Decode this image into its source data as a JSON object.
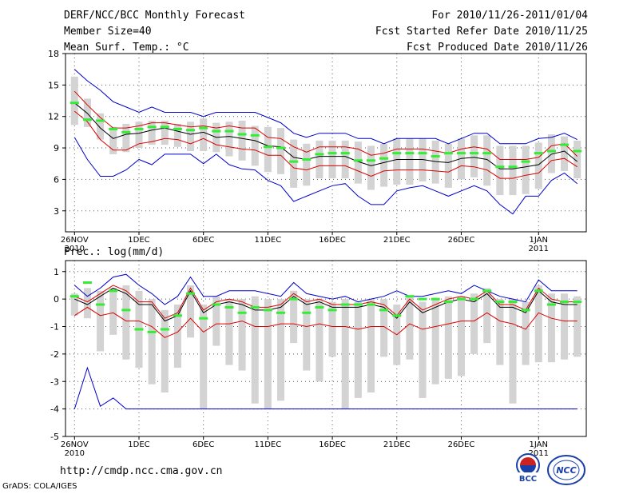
{
  "header": {
    "title": "DERF/NCC/BCC Monthly Forecast",
    "member_size": "Member Size=40",
    "variable": "Mean Surf. Temp.: °C",
    "period": "For 2010/11/26-2011/01/04",
    "fcst_started": "Fcst Started Refer Date 2010/11/25",
    "fcst_produced": "Fcst Produced Date 2010/11/26"
  },
  "colors": {
    "box": "#d3d3d3",
    "median": "#33ee33",
    "mean": "#000000",
    "inner": "#dd0000",
    "outer": "#0000cc",
    "grid": "#555555"
  },
  "footer": {
    "url": "http://cmdp.ncc.cma.gov.cn",
    "grads": "GrADS: COLA/IGES",
    "logo_left": "BCC",
    "logo_right": "NCC"
  },
  "chart_data": [
    {
      "type": "line",
      "title": "Mean Surf. Temp.: °C",
      "ylim": [
        1,
        18
      ],
      "yticks": [
        3,
        6,
        9,
        12,
        15,
        18
      ],
      "x": [
        1,
        2,
        3,
        4,
        5,
        6,
        7,
        8,
        9,
        10,
        11,
        12,
        13,
        14,
        15,
        16,
        17,
        18,
        19,
        20,
        21,
        22,
        23,
        24,
        25,
        26,
        27,
        28,
        29,
        30,
        31,
        32,
        33,
        34,
        35,
        36,
        37,
        38,
        39,
        40
      ],
      "xlim": [
        0.3,
        40.7
      ],
      "xticks": [
        {
          "x": 1,
          "label": "26NOV",
          "sub": "2010"
        },
        {
          "x": 6,
          "label": "1DEC",
          "sub": ""
        },
        {
          "x": 11,
          "label": "6DEC",
          "sub": ""
        },
        {
          "x": 16,
          "label": "11DEC",
          "sub": ""
        },
        {
          "x": 21,
          "label": "16DEC",
          "sub": ""
        },
        {
          "x": 26,
          "label": "21DEC",
          "sub": ""
        },
        {
          "x": 31,
          "label": "26DEC",
          "sub": ""
        },
        {
          "x": 37,
          "label": "1JAN",
          "sub": "2011"
        }
      ],
      "series": [
        {
          "name": "max",
          "role": "outer",
          "values": [
            16.5,
            15.4,
            14.5,
            13.4,
            12.9,
            12.4,
            12.9,
            12.4,
            12.4,
            12.4,
            12.0,
            12.4,
            12.4,
            12.4,
            12.4,
            11.9,
            11.4,
            10.4,
            10.0,
            10.4,
            10.4,
            10.4,
            9.9,
            9.9,
            9.4,
            9.9,
            9.9,
            9.9,
            9.9,
            9.4,
            9.9,
            10.4,
            10.4,
            9.4,
            9.4,
            9.4,
            9.9,
            10.0,
            10.4,
            9.8
          ]
        },
        {
          "name": "upper",
          "role": "inner",
          "values": [
            14.4,
            13.1,
            11.9,
            10.9,
            10.9,
            11.1,
            11.4,
            11.4,
            11.2,
            11.0,
            11.1,
            10.9,
            11.1,
            10.9,
            10.9,
            10.0,
            9.9,
            9.1,
            8.6,
            9.1,
            9.1,
            9.1,
            8.9,
            8.3,
            8.5,
            8.9,
            8.9,
            8.9,
            8.7,
            8.5,
            8.9,
            9.1,
            8.9,
            7.9,
            7.9,
            7.9,
            8.1,
            9.2,
            9.4,
            8.2
          ]
        },
        {
          "name": "mean",
          "role": "mean",
          "values": [
            13.3,
            12.3,
            10.9,
            9.9,
            10.3,
            10.4,
            10.7,
            10.9,
            10.6,
            10.3,
            10.5,
            10.0,
            10.1,
            9.9,
            9.7,
            9.2,
            9.1,
            8.1,
            7.9,
            8.2,
            8.2,
            8.2,
            7.7,
            7.3,
            7.6,
            7.9,
            7.9,
            7.9,
            7.7,
            7.6,
            8.0,
            8.1,
            7.9,
            7.0,
            7.0,
            7.2,
            7.4,
            8.4,
            8.7,
            7.7
          ]
        },
        {
          "name": "lower",
          "role": "inner",
          "values": [
            12.5,
            11.5,
            9.8,
            8.8,
            8.8,
            9.4,
            9.6,
            9.9,
            9.8,
            9.4,
            9.9,
            9.3,
            9.1,
            8.9,
            8.8,
            8.3,
            8.3,
            7.1,
            6.9,
            7.3,
            7.3,
            7.3,
            6.8,
            6.3,
            6.8,
            6.9,
            6.9,
            6.9,
            6.8,
            6.7,
            7.3,
            7.2,
            6.9,
            6.1,
            6.1,
            6.4,
            6.6,
            7.8,
            8.0,
            7.2
          ]
        },
        {
          "name": "min",
          "role": "outer",
          "values": [
            10.0,
            7.9,
            6.3,
            6.3,
            6.9,
            7.9,
            7.4,
            8.4,
            8.4,
            8.4,
            7.5,
            8.4,
            7.4,
            7.0,
            6.9,
            5.9,
            5.4,
            3.9,
            4.4,
            4.9,
            5.4,
            5.6,
            4.4,
            3.6,
            3.6,
            4.9,
            5.2,
            5.4,
            4.9,
            4.4,
            4.9,
            5.4,
            4.9,
            3.6,
            2.7,
            4.4,
            4.4,
            5.9,
            6.6,
            5.6
          ]
        },
        {
          "name": "median",
          "role": "median",
          "values": [
            13.3,
            11.7,
            11.6,
            10.8,
            10.5,
            10.8,
            11.0,
            11.0,
            10.8,
            10.7,
            10.9,
            10.6,
            10.6,
            10.3,
            10.2,
            9.1,
            9.0,
            7.7,
            7.9,
            8.4,
            8.5,
            8.5,
            7.8,
            7.8,
            8.0,
            8.5,
            8.5,
            8.5,
            8.2,
            8.5,
            8.5,
            8.5,
            8.5,
            7.2,
            7.2,
            7.7,
            8.5,
            8.7,
            9.3,
            8.7
          ]
        },
        {
          "name": "box_top",
          "role": "box",
          "values": [
            15.8,
            13.7,
            12.3,
            11.0,
            11.3,
            11.5,
            11.6,
            11.6,
            11.3,
            11.5,
            11.8,
            11.4,
            11.5,
            11.6,
            11.1,
            11.0,
            10.9,
            9.8,
            9.4,
            9.7,
            9.7,
            9.7,
            9.6,
            9.2,
            9.4,
            9.9,
            9.9,
            9.9,
            9.7,
            9.4,
            9.9,
            10.2,
            10.2,
            9.2,
            9.2,
            9.2,
            9.5,
            10.3,
            10.1,
            9.7
          ]
        },
        {
          "name": "box_bottom",
          "role": "box",
          "values": [
            11.2,
            11.0,
            9.8,
            8.4,
            8.6,
            9.0,
            9.3,
            9.3,
            9.1,
            8.7,
            8.7,
            8.6,
            8.2,
            7.8,
            7.3,
            6.7,
            6.5,
            5.2,
            5.4,
            6.1,
            6.1,
            6.1,
            5.6,
            5.0,
            5.3,
            5.5,
            5.5,
            5.8,
            5.6,
            5.2,
            6.0,
            6.2,
            5.4,
            4.5,
            4.5,
            4.6,
            5.1,
            6.6,
            6.8,
            6.1
          ]
        }
      ]
    },
    {
      "type": "line",
      "title": "Prec.: log(mm/d)",
      "ylim": [
        -5,
        1.4
      ],
      "yticks": [
        -5,
        -4,
        -3,
        -2,
        -1,
        0,
        1
      ],
      "x": [
        1,
        2,
        3,
        4,
        5,
        6,
        7,
        8,
        9,
        10,
        11,
        12,
        13,
        14,
        15,
        16,
        17,
        18,
        19,
        20,
        21,
        22,
        23,
        24,
        25,
        26,
        27,
        28,
        29,
        30,
        31,
        32,
        33,
        34,
        35,
        36,
        37,
        38,
        39,
        40
      ],
      "xlim": [
        0.3,
        40.7
      ],
      "xticks": [
        {
          "x": 1,
          "label": "26NOV",
          "sub": "2010"
        },
        {
          "x": 6,
          "label": "1DEC",
          "sub": ""
        },
        {
          "x": 11,
          "label": "6DEC",
          "sub": ""
        },
        {
          "x": 16,
          "label": "11DEC",
          "sub": ""
        },
        {
          "x": 21,
          "label": "16DEC",
          "sub": ""
        },
        {
          "x": 26,
          "label": "21DEC",
          "sub": ""
        },
        {
          "x": 31,
          "label": "26DEC",
          "sub": ""
        },
        {
          "x": 37,
          "label": "1JAN",
          "sub": "2011"
        }
      ],
      "series": [
        {
          "name": "max",
          "role": "outer",
          "values": [
            0.5,
            0.1,
            0.4,
            0.8,
            0.9,
            0.5,
            0.2,
            -0.2,
            0.1,
            0.8,
            0.1,
            0.1,
            0.3,
            0.3,
            0.3,
            0.2,
            0.1,
            0.6,
            0.2,
            0.1,
            0.0,
            0.1,
            -0.1,
            0.0,
            0.1,
            0.3,
            0.1,
            0.1,
            0.2,
            0.3,
            0.2,
            0.5,
            0.3,
            0.1,
            0.0,
            -0.1,
            0.7,
            0.3,
            0.3,
            0.3
          ]
        },
        {
          "name": "upper",
          "role": "inner",
          "values": [
            0.1,
            -0.1,
            0.2,
            0.5,
            0.3,
            -0.1,
            -0.1,
            -0.7,
            -0.5,
            0.4,
            -0.4,
            -0.1,
            0.0,
            -0.1,
            -0.3,
            -0.3,
            -0.2,
            0.2,
            -0.1,
            0.0,
            -0.2,
            -0.2,
            -0.2,
            -0.1,
            -0.2,
            -0.6,
            0.0,
            -0.4,
            -0.2,
            0.0,
            0.1,
            0.0,
            0.3,
            -0.2,
            -0.2,
            -0.4,
            0.4,
            0.0,
            -0.1,
            -0.1
          ]
        },
        {
          "name": "mean",
          "role": "mean",
          "values": [
            0.0,
            -0.2,
            0.1,
            0.4,
            0.2,
            -0.2,
            -0.2,
            -0.8,
            -0.6,
            0.3,
            -0.5,
            -0.2,
            -0.1,
            -0.2,
            -0.4,
            -0.4,
            -0.3,
            0.1,
            -0.2,
            -0.1,
            -0.3,
            -0.3,
            -0.3,
            -0.2,
            -0.3,
            -0.7,
            -0.1,
            -0.5,
            -0.3,
            -0.1,
            0.0,
            -0.1,
            0.2,
            -0.3,
            -0.3,
            -0.5,
            0.3,
            -0.1,
            -0.2,
            -0.2
          ]
        },
        {
          "name": "lower",
          "role": "inner",
          "values": [
            -0.6,
            -0.3,
            -0.6,
            -0.5,
            -0.8,
            -0.8,
            -1.0,
            -1.4,
            -1.2,
            -0.7,
            -1.2,
            -0.9,
            -0.9,
            -0.8,
            -1.0,
            -1.0,
            -0.9,
            -0.9,
            -1.0,
            -0.9,
            -1.0,
            -1.0,
            -1.1,
            -1.0,
            -1.0,
            -1.3,
            -0.9,
            -1.1,
            -1.0,
            -0.9,
            -0.8,
            -0.8,
            -0.5,
            -0.8,
            -0.9,
            -1.1,
            -0.5,
            -0.7,
            -0.8,
            -0.8
          ]
        },
        {
          "name": "min",
          "role": "outer",
          "values": [
            -4.0,
            -2.5,
            -3.9,
            -3.6,
            -4.0,
            -4.0,
            -4.0,
            -4.0,
            -4.0,
            -4.0,
            -4.0,
            -4.0,
            -4.0,
            -4.0,
            -4.0,
            -4.0,
            -4.0,
            -4.0,
            -4.0,
            -4.0,
            -4.0,
            -4.0,
            -4.0,
            -4.0,
            -4.0,
            -4.0,
            -4.0,
            -4.0,
            -4.0,
            -4.0,
            -4.0,
            -4.0,
            -4.0,
            -4.0,
            -4.0,
            -4.0,
            -4.0,
            -4.0,
            -4.0,
            -4.0
          ]
        },
        {
          "name": "median",
          "role": "median",
          "values": [
            0.1,
            0.6,
            -0.2,
            0.3,
            -0.4,
            -1.1,
            -1.2,
            -1.1,
            -0.6,
            0.2,
            -0.7,
            -0.2,
            -0.3,
            -0.5,
            -0.3,
            -0.4,
            -0.5,
            0.0,
            -0.5,
            -0.3,
            -0.4,
            -0.2,
            -0.2,
            -0.2,
            -0.4,
            -0.6,
            0.1,
            0.0,
            0.0,
            -0.1,
            0.0,
            0.0,
            0.3,
            -0.1,
            -0.1,
            -0.4,
            0.3,
            -0.2,
            -0.1,
            -0.1
          ]
        },
        {
          "name": "box_top",
          "role": "box",
          "values": [
            0.2,
            0.4,
            0.3,
            0.4,
            0.5,
            0.3,
            0.0,
            -0.4,
            -0.2,
            0.5,
            -0.2,
            0.1,
            0.0,
            0.0,
            0.1,
            0.0,
            0.0,
            0.3,
            0.0,
            0.0,
            -0.1,
            0.0,
            -0.1,
            0.0,
            0.0,
            -0.2,
            0.1,
            -0.1,
            0.0,
            0.1,
            0.1,
            0.2,
            0.4,
            0.0,
            0.0,
            -0.1,
            0.5,
            0.2,
            0.2,
            0.1
          ]
        },
        {
          "name": "box_bottom",
          "role": "box",
          "values": [
            -0.6,
            -0.7,
            -1.9,
            -1.3,
            -2.2,
            -2.5,
            -3.1,
            -3.4,
            -2.5,
            -1.4,
            -4.0,
            -1.7,
            -2.4,
            -2.6,
            -3.8,
            -4.0,
            -3.7,
            -1.6,
            -2.6,
            -3.0,
            -2.1,
            -4.0,
            -3.6,
            -3.4,
            -2.1,
            -2.4,
            -2.2,
            -3.6,
            -3.1,
            -2.9,
            -2.8,
            -2.0,
            -1.6,
            -2.4,
            -3.8,
            -2.4,
            -2.3,
            -2.3,
            -2.2,
            -2.1
          ]
        }
      ]
    }
  ]
}
